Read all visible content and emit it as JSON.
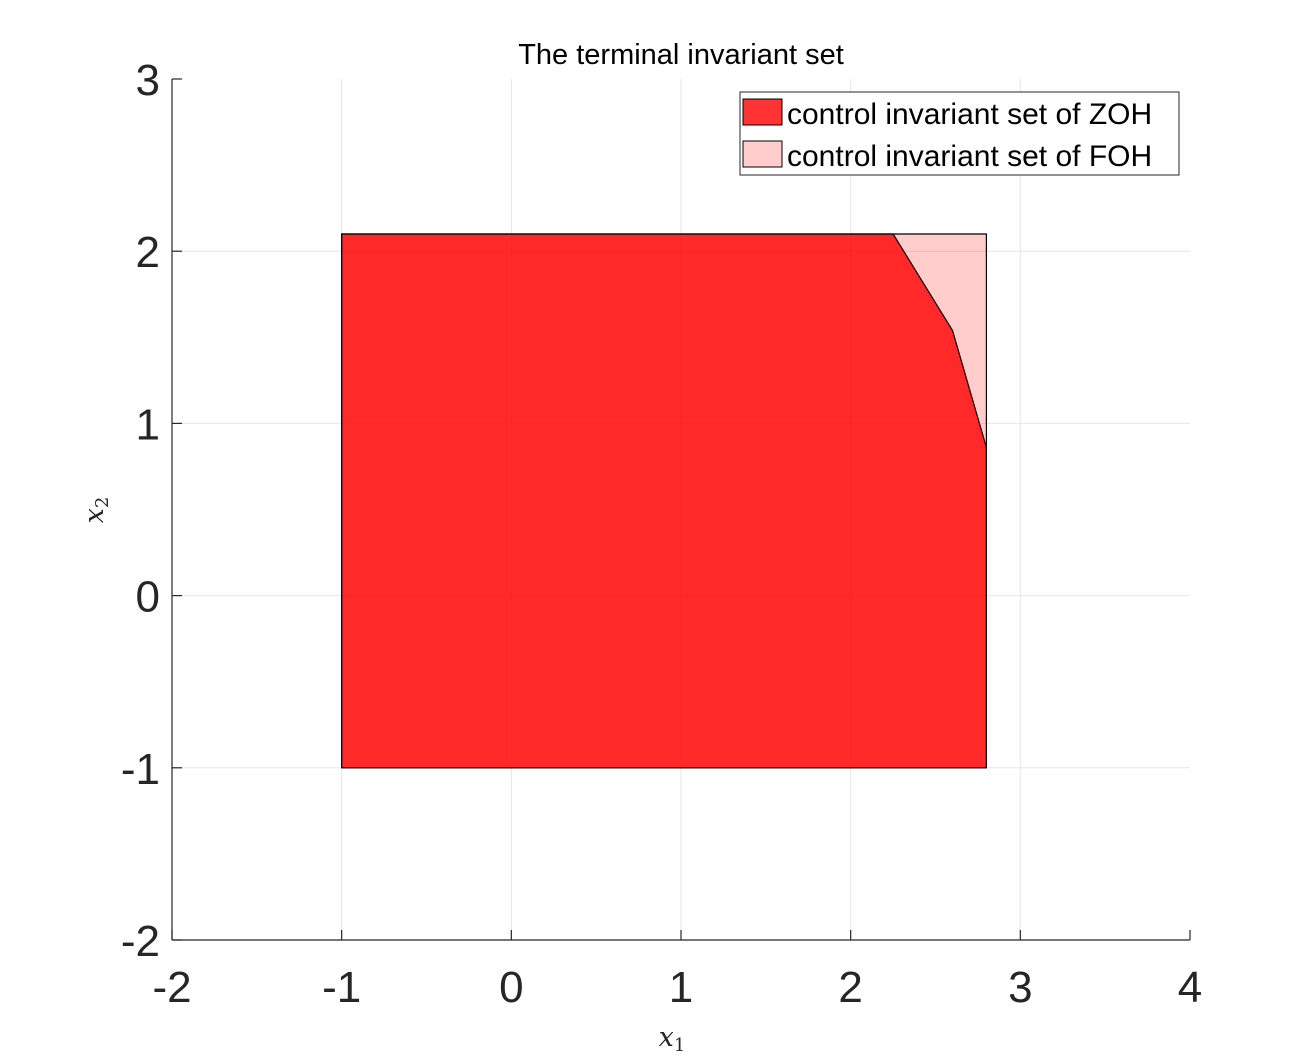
{
  "chart_data": {
    "type": "area",
    "title": "The terminal invariant set",
    "xlabel": "x",
    "xlabel_sub": "1",
    "ylabel": "x",
    "ylabel_sub": "2",
    "xlim": [
      -2,
      4
    ],
    "ylim": [
      -2,
      3
    ],
    "xticks": [
      -2,
      -1,
      0,
      1,
      2,
      3,
      4
    ],
    "yticks": [
      -2,
      -1,
      0,
      1,
      2,
      3
    ],
    "xtick_labels": [
      "-2",
      "-1",
      "0",
      "1",
      "2",
      "3",
      "4"
    ],
    "ytick_labels": [
      "-2",
      "-1",
      "0",
      "1",
      "2",
      "3"
    ],
    "grid": true,
    "legend_position": "top-right",
    "series": [
      {
        "name": "control invariant set of ZOH",
        "color": "#ff0000",
        "alpha": 0.8,
        "polygon": [
          [
            -1,
            -1
          ],
          [
            2.8,
            -1
          ],
          [
            2.8,
            0.86
          ],
          [
            2.6,
            1.54
          ],
          [
            2.25,
            2.1
          ],
          [
            -1,
            2.1
          ]
        ]
      },
      {
        "name": "control invariant set of FOH",
        "color": "#ff0000",
        "alpha": 0.2,
        "polygon": [
          [
            -1,
            -1
          ],
          [
            2.8,
            -1
          ],
          [
            2.8,
            2.1
          ],
          [
            -1,
            2.1
          ]
        ]
      }
    ]
  }
}
